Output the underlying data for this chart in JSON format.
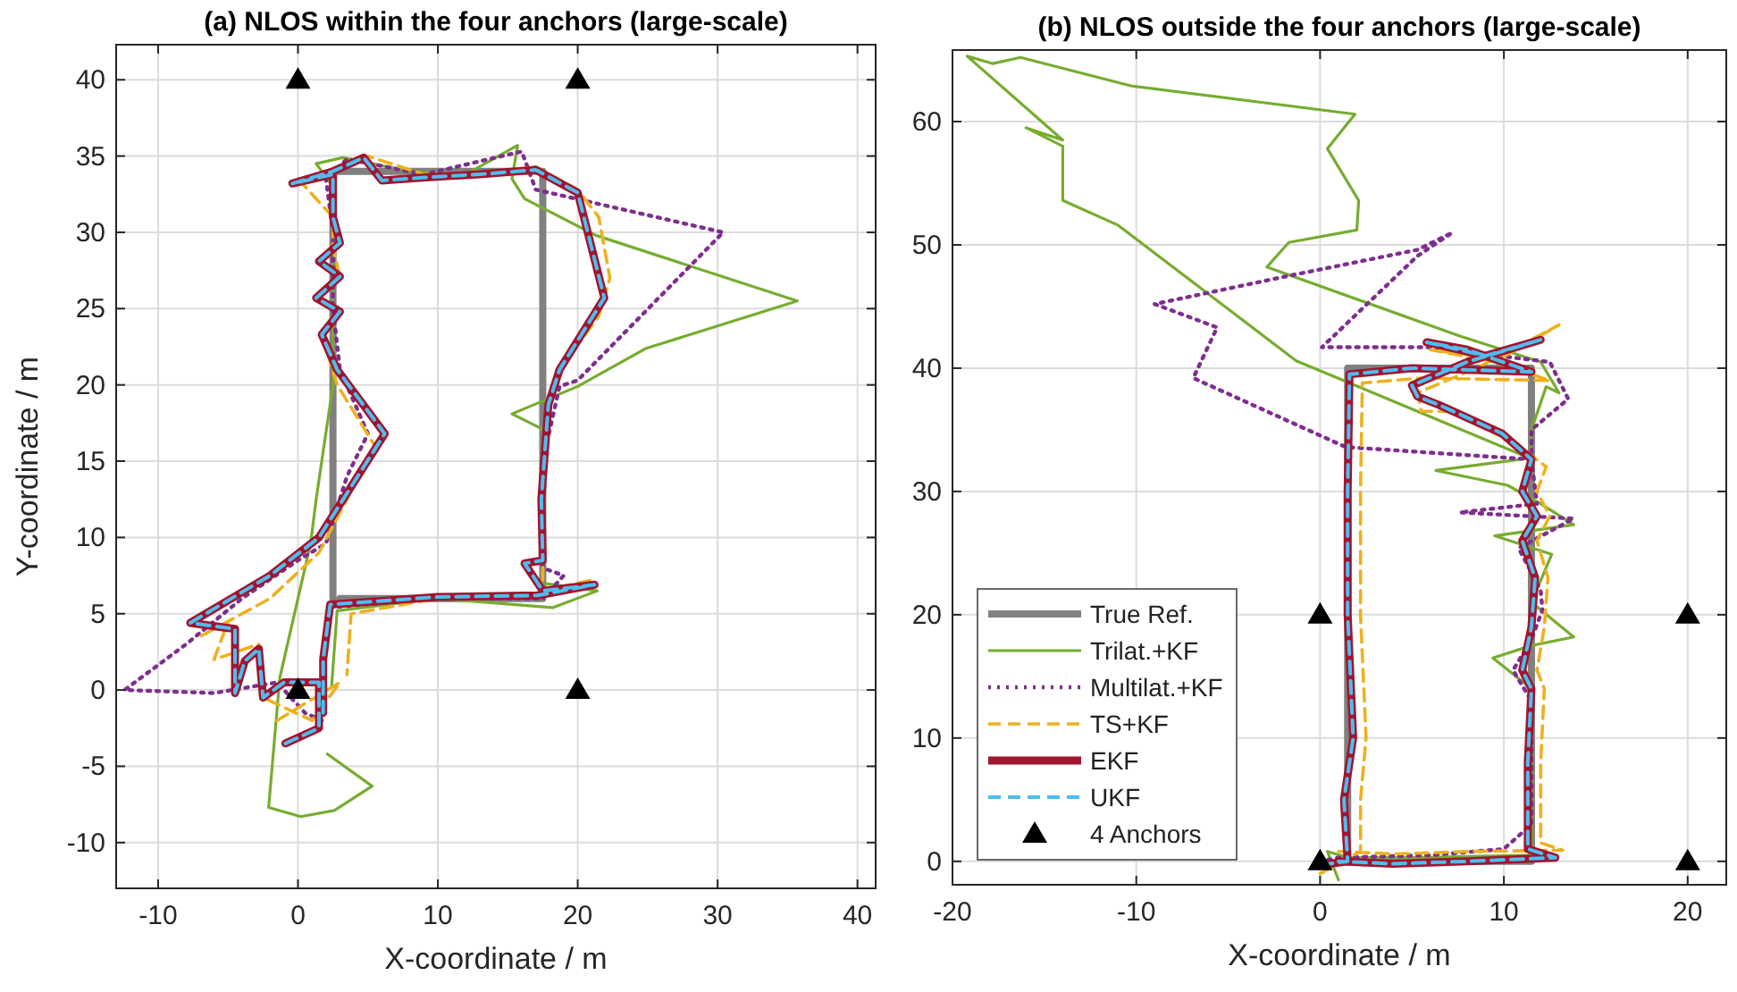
{
  "chart_data": [
    {
      "type": "line",
      "title": "(a) NLOS within the four anchors (large-scale)",
      "xlabel": "X-coordinate / m",
      "ylabel": "Y-coordinate / m",
      "xlim": [
        -13,
        41.3
      ],
      "ylim": [
        -13,
        42.3
      ],
      "xticks": [
        -10,
        0,
        10,
        20,
        30,
        40
      ],
      "yticks": [
        -10,
        -5,
        0,
        5,
        10,
        15,
        20,
        25,
        30,
        35,
        40
      ],
      "grid": true,
      "legend": false,
      "series": [
        {
          "color": "#808080",
          "line_style": "solid",
          "x": [
            2.5,
            2.5,
            17.5,
            17.5,
            3
          ],
          "values": [
            6,
            34,
            34,
            6,
            6
          ]
        },
        {
          "color": "#77ac30",
          "line_style": "solid",
          "x": [
            2.1,
            5.3,
            2.6,
            0.2,
            -2.1,
            -1.3,
            0.9,
            1.3,
            2.5,
            2.5,
            2.5,
            1.3,
            3.2,
            8,
            12,
            15.7,
            15.3,
            16.2,
            21.3,
            35.7,
            24.9,
            20,
            15.3,
            17.7,
            17.5,
            17.5,
            21.4,
            18.2,
            10,
            2.8,
            2.4
          ],
          "values": [
            -4.2,
            -6.3,
            -7.9,
            -8.3,
            -7.7,
            0.8,
            9.6,
            12.5,
            20,
            28,
            33,
            34.5,
            34.9,
            34,
            33.8,
            35.7,
            33.5,
            32.2,
            29.8,
            25.5,
            22.4,
            19.9,
            18.1,
            17,
            10,
            7,
            6.5,
            5.4,
            6,
            5.2,
            0.2
          ]
        },
        {
          "color": "#7e2f8e",
          "line_style": "dotted",
          "x": [
            1.7,
            0.5,
            -1.5,
            -6,
            -12.4,
            -8,
            -4,
            0,
            2,
            3.5,
            5,
            3,
            2.5,
            2.5,
            2,
            3.5,
            9,
            16,
            17,
            30.4,
            20,
            18.7,
            17.5,
            17.5,
            19,
            17.5,
            10,
            2
          ],
          "values": [
            -2,
            -1.5,
            0.5,
            -0.2,
            0,
            3,
            6,
            8.5,
            9.6,
            14,
            16.8,
            21,
            25,
            30,
            33.5,
            34.8,
            33.8,
            35.3,
            32.8,
            30,
            20.3,
            19.9,
            15,
            8,
            7.5,
            6,
            6,
            5.4
          ]
        },
        {
          "color": "#edb120",
          "line_style": "dashed",
          "x": [
            -1.5,
            3,
            1,
            -2.5,
            -2.8,
            -6,
            -5,
            -7,
            -2,
            1.5,
            5.5,
            2.8,
            1.7,
            3,
            1.5,
            3,
            2.5,
            2.5,
            0,
            2.5,
            5,
            9,
            13,
            17,
            20,
            21.5,
            22.3,
            21.5,
            18.7,
            17.9,
            17.4,
            17.5,
            17.5,
            21,
            17.1,
            10,
            3.8,
            3.5
          ],
          "values": [
            -2,
            0.5,
            -2,
            -0.5,
            3,
            2,
            4.5,
            3.5,
            6,
            9,
            16,
            20,
            23.3,
            24.8,
            25.7,
            27.1,
            29,
            31,
            33.5,
            34,
            35,
            33.8,
            33.8,
            34.3,
            32.8,
            31,
            27,
            24.5,
            21,
            18.7,
            12.5,
            8.5,
            6.5,
            7.2,
            6.2,
            6,
            5,
            1
          ]
        },
        {
          "color": "#a2142f",
          "line_style": "solid",
          "x": [
            -0.9,
            1.5,
            1.5,
            -1,
            -2.5,
            -2.8,
            -3.8,
            -4.5,
            -4.5,
            -7.7,
            -2,
            1.5,
            6.2,
            2.8,
            1.7,
            3,
            1.3,
            3,
            1.5,
            3,
            2.5,
            2.5,
            -0.4,
            2.5,
            4.7,
            6,
            9.1,
            13,
            17,
            20,
            21.9,
            18.7,
            17.9,
            17.4,
            17.5,
            16.2,
            17.5,
            21.2,
            17.1,
            10,
            2.3,
            1.8,
            1.8
          ],
          "values": [
            -3.5,
            -2.5,
            0.5,
            0.5,
            -0.5,
            2.7,
            1.9,
            -0.2,
            4,
            4.4,
            7.5,
            10,
            16.8,
            21,
            23.3,
            24.8,
            25.7,
            27.1,
            28.1,
            29.3,
            31,
            33.8,
            33.2,
            34,
            34.9,
            33.4,
            33.6,
            33.8,
            34.1,
            32.6,
            25.7,
            21,
            18.7,
            12.5,
            8.5,
            8.3,
            6.5,
            6.9,
            6.2,
            6.1,
            5.6,
            2,
            -1.5
          ]
        },
        {
          "color": "#4dbeee",
          "line_style": "dashed",
          "x": [
            -0.9,
            1.5,
            1.5,
            -1,
            -2.5,
            -2.8,
            -3.8,
            -4.5,
            -4.5,
            -7.7,
            -2,
            1.5,
            6.2,
            2.8,
            1.7,
            3,
            1.3,
            3,
            1.5,
            3,
            2.5,
            2.5,
            -0.4,
            2.5,
            4.7,
            6,
            9.1,
            13,
            17,
            20,
            21.9,
            18.7,
            17.9,
            17.4,
            17.5,
            16.2,
            17.5,
            21.2,
            17.1,
            10,
            2.3,
            1.8,
            1.8
          ],
          "values": [
            -3.5,
            -2.5,
            0.5,
            0.5,
            -0.5,
            2.7,
            1.9,
            -0.2,
            4,
            4.4,
            7.5,
            10,
            16.8,
            21,
            23.3,
            24.8,
            25.7,
            27.1,
            28.1,
            29.3,
            31,
            33.8,
            33.2,
            34,
            34.9,
            33.4,
            33.6,
            33.8,
            34.1,
            32.6,
            25.7,
            21,
            18.7,
            12.5,
            8.5,
            8.3,
            6.5,
            6.9,
            6.2,
            6.1,
            5.6,
            2,
            -1.5
          ]
        },
        {
          "type": "scatter",
          "color": "#000000",
          "marker": "triangle",
          "x": [
            0,
            20,
            0,
            20
          ],
          "values": [
            40,
            40,
            0,
            0
          ]
        }
      ]
    },
    {
      "type": "line",
      "title": "(b) NLOS outside the four anchors (large-scale)",
      "xlabel": "X-coordinate / m",
      "xlim": [
        -20,
        22.1
      ],
      "ylim": [
        -1.9,
        65.8
      ],
      "xticks": [
        -20,
        -10,
        0,
        10,
        20
      ],
      "yticks": [
        0,
        10,
        20,
        30,
        40,
        50,
        60
      ],
      "grid": true,
      "legend": "bottom left",
      "series": [
        {
          "name": "True Ref.",
          "color": "#808080",
          "line_style": "solid",
          "x": [
            1.5,
            1.5,
            11.5,
            11.5,
            2
          ],
          "values": [
            0,
            40,
            40,
            0,
            0
          ]
        },
        {
          "name": "Trilat.+KF",
          "color": "#77ac30",
          "line_style": "solid",
          "x": [
            11.4,
            -1.3,
            -11,
            -14,
            -14,
            -16,
            -14,
            -19.2,
            -17.8,
            -16.3,
            -10.3,
            1.9,
            0.4,
            2.1,
            2,
            -1.7,
            -2.9,
            7.6,
            12,
            13,
            12.3,
            11.5,
            11.4,
            6.3,
            10.2,
            12,
            13.8,
            9.5,
            12.6,
            11.5,
            13.8,
            11.5,
            9.4,
            11.5,
            11.5,
            11.5,
            5,
            1.5,
            0.4,
            1
          ],
          "values": [
            32.7,
            40.6,
            51.6,
            53.6,
            58,
            59.5,
            58.5,
            65.3,
            64.7,
            65.2,
            62.9,
            60.6,
            57.8,
            53.6,
            51.2,
            50.2,
            48.2,
            42.6,
            40.5,
            38,
            38.5,
            35,
            32.7,
            31.7,
            30.5,
            29,
            27.3,
            26.4,
            24.9,
            21,
            18.2,
            17.5,
            16.5,
            14,
            5,
            0.5,
            0.3,
            0.3,
            0.8,
            -1.5
          ]
        },
        {
          "name": "Multilat.+KF",
          "color": "#7e2f8e",
          "line_style": "dotted",
          "x": [
            11.5,
            1.4,
            -6.9,
            -5.6,
            -9,
            -2,
            5.3,
            7.2,
            5.3,
            0.1,
            5.8,
            12.5,
            13.5,
            11.5,
            11.5,
            11.8,
            7.6,
            13.8,
            10.8,
            12,
            12.1,
            11.5,
            10.5,
            11.5,
            11.5,
            10,
            6,
            1,
            0
          ],
          "values": [
            32.6,
            33.6,
            39.2,
            43.3,
            45.2,
            47.4,
            49.6,
            51,
            49.1,
            41.7,
            41.7,
            40.5,
            37.5,
            35,
            32.6,
            29,
            28.3,
            27.8,
            25.4,
            22,
            20.4,
            18,
            15.5,
            13,
            3,
            1,
            0.5,
            0.3,
            0
          ]
        },
        {
          "name": "TS+KF",
          "color": "#edb120",
          "line_style": "dashed",
          "x": [
            0,
            2.2,
            2.2,
            2.5,
            2.2,
            2.2,
            2.3,
            5.5,
            12.5,
            8.5,
            6,
            9.5,
            13,
            8.5,
            5.3,
            5.5,
            7,
            10.5,
            12.3,
            11.8,
            12.5,
            11.8,
            12.4,
            12.2,
            11.8,
            12.2,
            12,
            12,
            13.2,
            8,
            4,
            1
          ],
          "values": [
            -1,
            0.8,
            5,
            10,
            20,
            30,
            38.8,
            39.2,
            39,
            41,
            41.5,
            40.5,
            43.5,
            40,
            38,
            36.5,
            36.5,
            34,
            32,
            30,
            28,
            26,
            23,
            19,
            15.5,
            14,
            8,
            1.5,
            0.9,
            0.8,
            0.6,
            0.8
          ]
        },
        {
          "name": "EKF",
          "color": "#a2142f",
          "line_style": "solid",
          "x": [
            0,
            1.5,
            1.3,
            1.8,
            1.5,
            1.5,
            1.6,
            5,
            11.5,
            8,
            5.8,
            9,
            12,
            8,
            5,
            5.3,
            6.5,
            9.9,
            11.5,
            11,
            11.8,
            11,
            11.7,
            11.5,
            11,
            11.5,
            11.3,
            11.3,
            12.8,
            8,
            4,
            1
          ],
          "values": [
            -0.3,
            0,
            5,
            10,
            20,
            30,
            39.5,
            40,
            39.7,
            41.5,
            42.1,
            41,
            42.3,
            40.5,
            38.6,
            37.7,
            37,
            34.7,
            32.6,
            30,
            28,
            26,
            23,
            19,
            15.5,
            14,
            8,
            1,
            0.3,
            0,
            -0.2,
            0
          ]
        },
        {
          "name": "UKF",
          "color": "#4dbeee",
          "line_style": "dashed",
          "x": [
            0,
            1.5,
            1.3,
            1.8,
            1.5,
            1.5,
            1.6,
            5,
            11.5,
            8,
            5.8,
            9,
            12,
            8,
            5,
            5.3,
            6.5,
            9.9,
            11.5,
            11,
            11.8,
            11,
            11.7,
            11.5,
            11,
            11.5,
            11.3,
            11.3,
            12.8,
            8,
            4,
            1
          ],
          "values": [
            -0.3,
            0,
            5,
            10,
            20,
            30,
            39.5,
            40,
            39.7,
            41.5,
            42.1,
            41,
            42.3,
            40.5,
            38.6,
            37.7,
            37,
            34.7,
            32.6,
            30,
            28,
            26,
            23,
            19,
            15.5,
            14,
            8,
            1,
            0.3,
            0,
            -0.2,
            0
          ]
        },
        {
          "name": "4 Anchors",
          "type": "scatter",
          "color": "#000000",
          "marker": "triangle",
          "x": [
            0,
            20,
            0,
            20
          ],
          "values": [
            20,
            20,
            0,
            0
          ]
        }
      ]
    }
  ]
}
